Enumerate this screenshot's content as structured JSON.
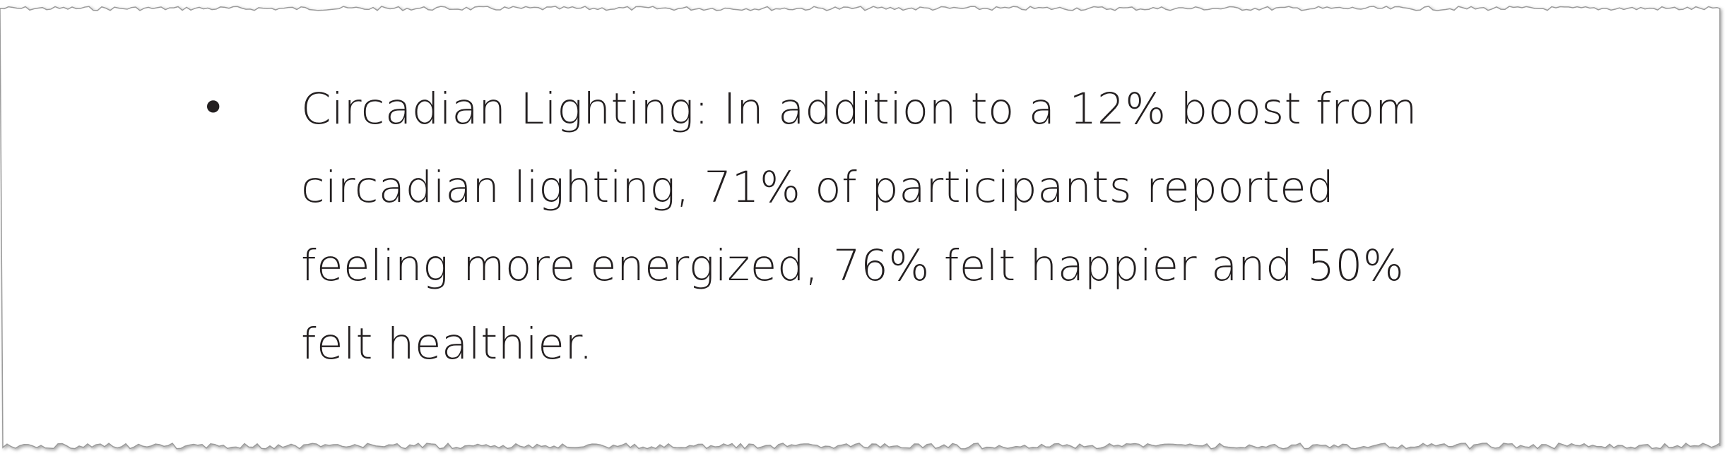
{
  "list": {
    "items": [
      {
        "lines": [
          "Circadian Lighting: In addition to a 12% boost from",
          "circadian lighting, 71% of participants reported",
          "feeling more energized, 76% felt happier and 50%",
          "felt healthier."
        ]
      }
    ]
  }
}
